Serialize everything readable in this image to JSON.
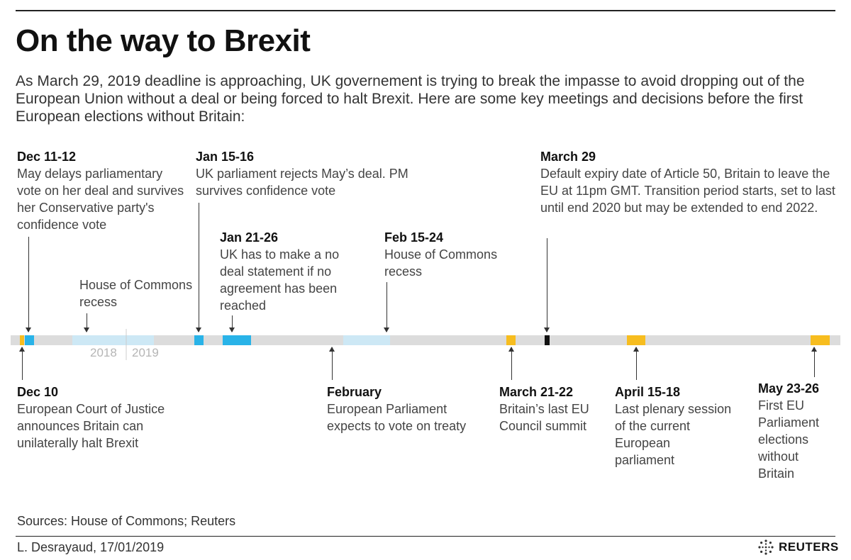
{
  "header": {
    "title": "On the way to Brexit",
    "subtitle": "As March 29, 2019 deadline is approaching, UK governement is trying to break the impasse to avoid dropping out of the European Union without a deal or being forced to halt Brexit. Here are some key meetings and decisions before the first European elections without Britain:"
  },
  "events_above": [
    {
      "date": "Dec 11-12",
      "desc": "May delays parliamentary vote on her deal and survives her Conservative party's confidence vote"
    },
    {
      "date": "Jan 15-16",
      "desc": "UK parliament rejects May’s deal. PM survives confidence vote"
    },
    {
      "date": "Jan 21-26",
      "desc": "UK has to make a no deal statement if no agreement has been reached"
    },
    {
      "date": "Feb 15-24",
      "desc": "House of Commons recess"
    },
    {
      "date": "March 29",
      "desc": "Default expiry date of Article 50, Britain to leave the EU at 11pm GMT. Transition period starts, set to last until end 2020 but may be extended to end 2022."
    }
  ],
  "recess_label": "House of Commons recess",
  "events_below": [
    {
      "date": "Dec 10",
      "desc": "European Court of Justice announces Britain can unilaterally halt Brexit"
    },
    {
      "date": "February",
      "desc": "European Parliament expects to vote on treaty"
    },
    {
      "date": "March 21-22",
      "desc": "Britain’s last EU Council summit"
    },
    {
      "date": "April 15-18",
      "desc": "Last plenary session of the current European parliament"
    },
    {
      "date": "May 23-26",
      "desc": "First EU Parliament elections without Britain"
    }
  ],
  "years": {
    "left": "2018",
    "right": "2019"
  },
  "colors": {
    "track": "#dcdcdc",
    "uk": "#29b3e8",
    "recess": "#cde8f5",
    "eu": "#f7bd1f",
    "deadline": "#111111"
  },
  "footer": {
    "sources": "Sources: House of Commons; Reuters",
    "credit": "L. Desrayaud, 17/01/2019",
    "logo": "REUTERS"
  }
}
